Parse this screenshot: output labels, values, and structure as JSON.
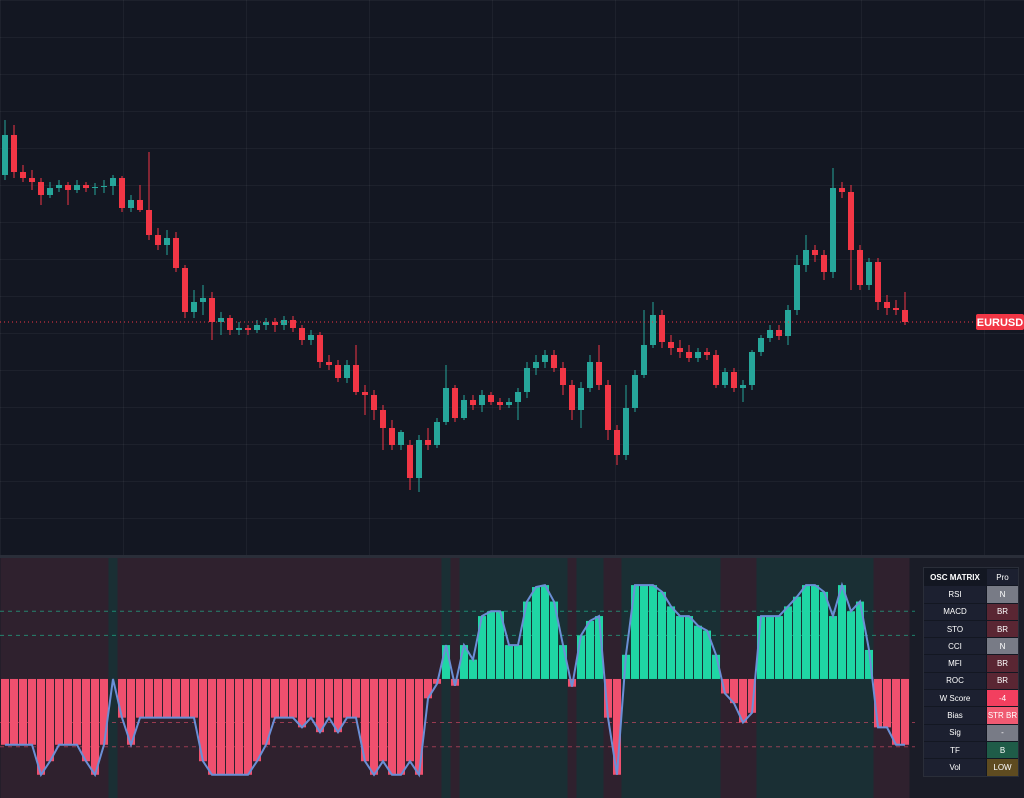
{
  "chart_data": {
    "type": "candlestick",
    "symbol": "EURUSD",
    "open": [
      425,
      465,
      428,
      422,
      418,
      405,
      412,
      415,
      410,
      415,
      412,
      413,
      414,
      422,
      392,
      400,
      390,
      365,
      355,
      362,
      332,
      288,
      298,
      302,
      278,
      282,
      270,
      272,
      270,
      275,
      278,
      275,
      280,
      272,
      260,
      265,
      238,
      235,
      222,
      235,
      208,
      205,
      190,
      172,
      155,
      155,
      122,
      160,
      155,
      178,
      212,
      182,
      200,
      195,
      205,
      198,
      195,
      198,
      208,
      232,
      238,
      245,
      232,
      215,
      190,
      212,
      238,
      215,
      170,
      145,
      192,
      225,
      255,
      285,
      258,
      252,
      248,
      242,
      248,
      245,
      215,
      228,
      212,
      215,
      248,
      262,
      270,
      264,
      290,
      335,
      350,
      345,
      328,
      412,
      408,
      350,
      315,
      338,
      298,
      292,
      290
    ],
    "high": [
      480,
      475,
      435,
      430,
      422,
      418,
      420,
      418,
      420,
      418,
      417,
      420,
      425,
      424,
      405,
      415,
      448,
      372,
      370,
      368,
      335,
      310,
      315,
      308,
      288,
      285,
      278,
      275,
      280,
      282,
      282,
      284,
      284,
      275,
      270,
      268,
      245,
      240,
      240,
      255,
      215,
      210,
      195,
      180,
      170,
      160,
      165,
      172,
      182,
      235,
      215,
      205,
      205,
      210,
      208,
      202,
      202,
      212,
      238,
      245,
      250,
      250,
      238,
      220,
      218,
      245,
      255,
      220,
      175,
      215,
      230,
      290,
      298,
      290,
      265,
      260,
      255,
      252,
      252,
      250,
      232,
      232,
      220,
      250,
      265,
      275,
      275,
      295,
      345,
      365,
      355,
      350,
      432,
      418,
      415,
      355,
      342,
      342,
      305,
      300,
      308
    ],
    "low": [
      420,
      422,
      418,
      410,
      395,
      402,
      408,
      395,
      407,
      408,
      405,
      407,
      405,
      388,
      388,
      388,
      360,
      350,
      345,
      328,
      282,
      282,
      285,
      260,
      265,
      265,
      265,
      265,
      267,
      270,
      268,
      270,
      268,
      255,
      255,
      232,
      230,
      218,
      217,
      205,
      185,
      180,
      150,
      150,
      150,
      110,
      108,
      150,
      152,
      175,
      178,
      180,
      190,
      188,
      195,
      190,
      192,
      180,
      202,
      225,
      232,
      228,
      205,
      180,
      172,
      208,
      210,
      160,
      135,
      140,
      188,
      222,
      252,
      252,
      245,
      242,
      238,
      238,
      240,
      212,
      212,
      208,
      198,
      210,
      244,
      258,
      260,
      255,
      285,
      328,
      338,
      320,
      322,
      402,
      310,
      310,
      310,
      290,
      285,
      285,
      275
    ],
    "close": [
      465,
      428,
      422,
      418,
      405,
      412,
      415,
      410,
      415,
      412,
      413,
      414,
      422,
      392,
      400,
      390,
      365,
      355,
      362,
      332,
      288,
      298,
      302,
      278,
      282,
      270,
      272,
      270,
      275,
      278,
      275,
      280,
      272,
      260,
      265,
      238,
      235,
      222,
      235,
      208,
      205,
      190,
      172,
      155,
      168,
      122,
      160,
      155,
      178,
      212,
      182,
      200,
      195,
      205,
      198,
      195,
      198,
      208,
      232,
      238,
      245,
      232,
      215,
      190,
      212,
      238,
      215,
      170,
      145,
      192,
      225,
      255,
      285,
      258,
      252,
      248,
      242,
      248,
      245,
      215,
      228,
      212,
      215,
      248,
      262,
      270,
      264,
      290,
      335,
      350,
      345,
      328,
      412,
      408,
      350,
      315,
      338,
      298,
      292,
      290,
      278
    ],
    "ylim": [
      45,
      600
    ],
    "up_color": "#26a69a",
    "down_color": "#f23645",
    "oscillator": {
      "type": "bar",
      "values": [
        -68,
        -68,
        -68,
        -68,
        -99,
        -85,
        -68,
        -68,
        -68,
        -85,
        -99,
        -68,
        0,
        -40,
        -68,
        -40,
        -40,
        -40,
        -40,
        -40,
        -40,
        -40,
        -85,
        -99,
        -99,
        -99,
        -99,
        -99,
        -85,
        -68,
        -40,
        -40,
        -40,
        -50,
        -40,
        -55,
        -40,
        -55,
        -40,
        -40,
        -85,
        -99,
        -85,
        -99,
        -99,
        -85,
        -99,
        -20,
        -5,
        35,
        -7,
        35,
        20,
        65,
        70,
        70,
        35,
        35,
        80,
        95,
        97,
        80,
        35,
        -8,
        45,
        60,
        65,
        -40,
        -99,
        25,
        97,
        97,
        97,
        90,
        75,
        65,
        65,
        55,
        50,
        25,
        -15,
        -25,
        -45,
        -35,
        65,
        65,
        65,
        75,
        85,
        97,
        97,
        90,
        65,
        97,
        70,
        80,
        30,
        -50,
        -50,
        -68,
        -68
      ],
      "ylim": [
        -123,
        125
      ],
      "levels": [
        70,
        45,
        -45,
        -70
      ],
      "positive_color": "#1fd6a4",
      "negative_color": "#f0506e",
      "line_color": "#6b8fd6"
    }
  },
  "table": {
    "title": "OSC MATRIX",
    "badge": "Pro",
    "rows": [
      {
        "label": "RSI",
        "value": "N",
        "color": "#787b86"
      },
      {
        "label": "MACD",
        "value": "BR",
        "color": "#5a2633"
      },
      {
        "label": "STO",
        "value": "BR",
        "color": "#5a2633"
      },
      {
        "label": "CCI",
        "value": "N",
        "color": "#787b86"
      },
      {
        "label": "MFI",
        "value": "BR",
        "color": "#5a2633"
      },
      {
        "label": "ROC",
        "value": "BR",
        "color": "#5a2633"
      },
      {
        "label": "W Score",
        "value": "-4",
        "color": "#f23f5f"
      },
      {
        "label": "Bias",
        "value": "STR BR",
        "color": "#f05a72"
      },
      {
        "label": "Sig",
        "value": "-",
        "color": "#787b86"
      },
      {
        "label": "TF",
        "value": "B",
        "color": "#1f5c48"
      },
      {
        "label": "Vol",
        "value": "LOW",
        "color": "#5e4b20"
      }
    ]
  }
}
